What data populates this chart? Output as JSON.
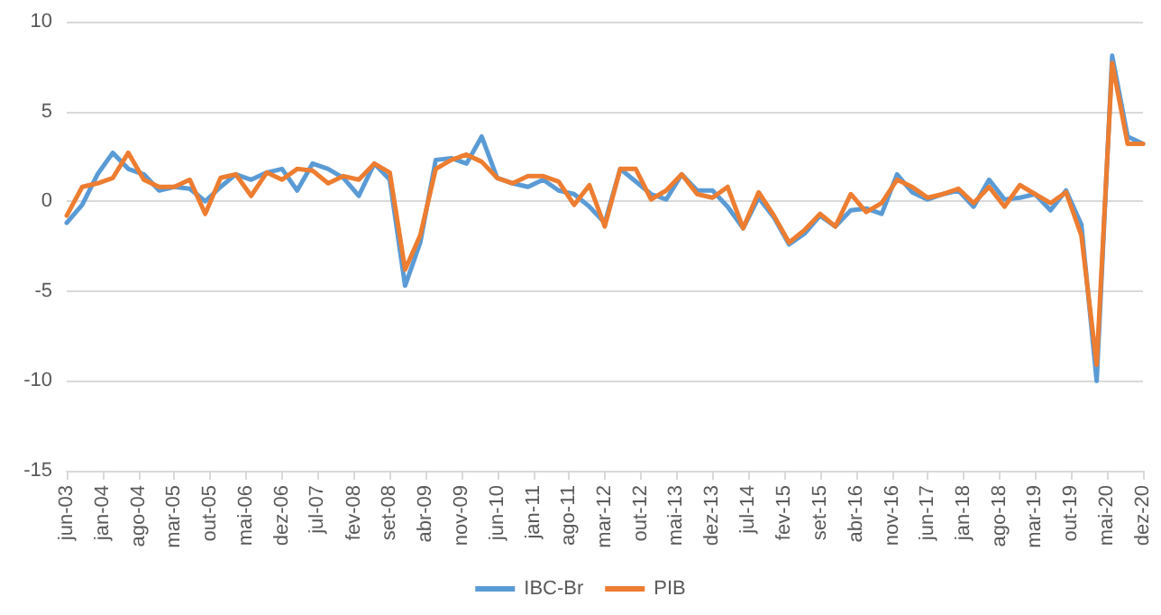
{
  "chart_data": {
    "type": "line",
    "x": [
      "2003-06",
      "2003-09",
      "2003-12",
      "2004-03",
      "2004-06",
      "2004-09",
      "2004-12",
      "2005-03",
      "2005-06",
      "2005-09",
      "2005-12",
      "2006-03",
      "2006-06",
      "2006-09",
      "2006-12",
      "2007-03",
      "2007-06",
      "2007-09",
      "2007-12",
      "2008-03",
      "2008-06",
      "2008-09",
      "2008-12",
      "2009-03",
      "2009-06",
      "2009-09",
      "2009-12",
      "2010-03",
      "2010-06",
      "2010-09",
      "2010-12",
      "2011-03",
      "2011-06",
      "2011-09",
      "2011-12",
      "2012-03",
      "2012-06",
      "2012-09",
      "2012-12",
      "2013-03",
      "2013-06",
      "2013-09",
      "2013-12",
      "2014-03",
      "2014-06",
      "2014-09",
      "2014-12",
      "2015-03",
      "2015-06",
      "2015-09",
      "2015-12",
      "2016-03",
      "2016-06",
      "2016-09",
      "2016-12",
      "2017-03",
      "2017-06",
      "2017-09",
      "2017-12",
      "2018-03",
      "2018-06",
      "2018-09",
      "2018-12",
      "2019-03",
      "2019-06",
      "2019-09",
      "2019-12",
      "2020-03",
      "2020-06",
      "2020-09",
      "2020-12"
    ],
    "series": [
      {
        "name": "IBC-Br",
        "color": "#5b9bd5",
        "values": [
          -1.2,
          -0.2,
          1.5,
          2.7,
          1.8,
          1.5,
          0.6,
          0.8,
          0.7,
          0,
          0.8,
          1.5,
          1.2,
          1.6,
          1.8,
          0.6,
          2.1,
          1.8,
          1.3,
          0.3,
          2.1,
          1.2,
          -4.7,
          -2.3,
          2.3,
          2.4,
          2.1,
          3.6,
          1.3,
          1.0,
          0.8,
          1.2,
          0.6,
          0.4,
          -0.3,
          -1.2,
          1.8,
          1.1,
          0.4,
          0.1,
          1.5,
          0.6,
          0.6,
          -0.3,
          -1.5,
          0.2,
          -0.9,
          -2.4,
          -1.8,
          -0.8,
          -1.4,
          -0.5,
          -0.4,
          -0.7,
          1.5,
          0.5,
          0.1,
          0.4,
          0.6,
          -0.3,
          1.2,
          0.1,
          0.2,
          0.4,
          -0.5,
          0.6,
          -1.3,
          -10.0,
          8.1,
          3.6,
          3.2
        ]
      },
      {
        "name": "PIB",
        "color": "#ed7d31",
        "values": [
          -0.8,
          0.8,
          1.0,
          1.3,
          2.7,
          1.2,
          0.8,
          0.8,
          1.2,
          -0.7,
          1.3,
          1.5,
          0.3,
          1.6,
          1.2,
          1.8,
          1.7,
          1.0,
          1.4,
          1.2,
          2.1,
          1.6,
          -3.8,
          -1.9,
          1.8,
          2.3,
          2.6,
          2.2,
          1.3,
          1.0,
          1.4,
          1.4,
          1.1,
          -0.2,
          0.9,
          -1.4,
          1.8,
          1.8,
          0.1,
          0.6,
          1.5,
          0.4,
          0.2,
          0.8,
          -1.5,
          0.5,
          -0.8,
          -2.3,
          -1.6,
          -0.7,
          -1.4,
          0.4,
          -0.6,
          -0.1,
          1.2,
          0.8,
          0.2,
          0.4,
          0.7,
          -0.1,
          0.8,
          -0.3,
          0.9,
          0.4,
          -0.1,
          0.5,
          -1.9,
          -9.1,
          7.7,
          3.2,
          3.2
        ]
      }
    ],
    "xlim": [
      "2003-06",
      "2020-12"
    ],
    "xticks": [
      {
        "value": "2003-06",
        "label": "jun-03"
      },
      {
        "value": "2004-01",
        "label": "jan-04"
      },
      {
        "value": "2004-08",
        "label": "ago-04"
      },
      {
        "value": "2005-03",
        "label": "mar-05"
      },
      {
        "value": "2005-10",
        "label": "out-05"
      },
      {
        "value": "2006-05",
        "label": "mai-06"
      },
      {
        "value": "2006-12",
        "label": "dez-06"
      },
      {
        "value": "2007-07",
        "label": "jul-07"
      },
      {
        "value": "2008-02",
        "label": "fev-08"
      },
      {
        "value": "2008-09",
        "label": "set-08"
      },
      {
        "value": "2009-04",
        "label": "abr-09"
      },
      {
        "value": "2009-11",
        "label": "nov-09"
      },
      {
        "value": "2010-06",
        "label": "jun-10"
      },
      {
        "value": "2011-01",
        "label": "jan-11"
      },
      {
        "value": "2011-08",
        "label": "ago-11"
      },
      {
        "value": "2012-03",
        "label": "mar-12"
      },
      {
        "value": "2012-10",
        "label": "out-12"
      },
      {
        "value": "2013-05",
        "label": "mai-13"
      },
      {
        "value": "2013-12",
        "label": "dez-13"
      },
      {
        "value": "2014-07",
        "label": "jul-14"
      },
      {
        "value": "2015-02",
        "label": "fev-15"
      },
      {
        "value": "2015-09",
        "label": "set-15"
      },
      {
        "value": "2016-04",
        "label": "abr-16"
      },
      {
        "value": "2016-11",
        "label": "nov-16"
      },
      {
        "value": "2017-06",
        "label": "jun-17"
      },
      {
        "value": "2018-01",
        "label": "jan-18"
      },
      {
        "value": "2018-08",
        "label": "ago-18"
      },
      {
        "value": "2019-03",
        "label": "mar-19"
      },
      {
        "value": "2019-10",
        "label": "out-19"
      },
      {
        "value": "2020-05",
        "label": "mai-20"
      },
      {
        "value": "2020-12",
        "label": "dez-20"
      }
    ],
    "ylim": [
      -15,
      10
    ],
    "yticks": [
      -15,
      -10,
      -5,
      0,
      5,
      10
    ],
    "grid": "y",
    "legend": "bottom",
    "marker": "none",
    "line_style": "solid"
  }
}
